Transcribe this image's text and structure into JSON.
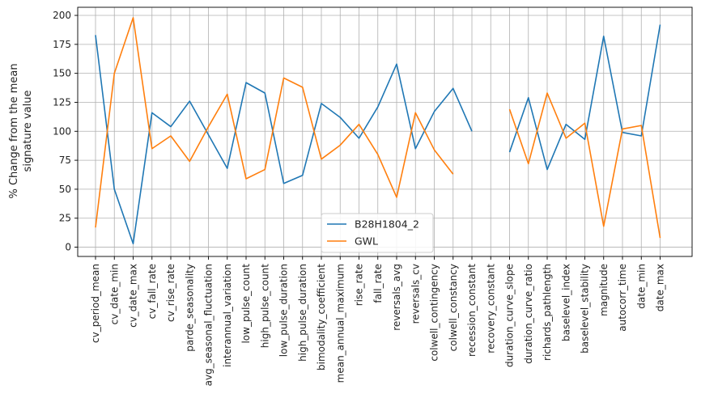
{
  "chart_data": {
    "type": "line",
    "title": "",
    "xlabel": "",
    "ylabel": [
      "% Change from the mean",
      "signature  value"
    ],
    "ylim": [
      -8,
      207
    ],
    "yticks": [
      0,
      25,
      50,
      75,
      100,
      125,
      150,
      175,
      200
    ],
    "grid": true,
    "legend_position": "lower-center",
    "categories": [
      "cv_period_mean",
      "cv_date_min",
      "cv_date_max",
      "cv_fall_rate",
      "cv_rise_rate",
      "parde_seasonality",
      "avg_seasonal_fluctuation",
      "interannual_variation",
      "low_pulse_count",
      "high_pulse_count",
      "low_pulse_duration",
      "high_pulse_duration",
      "bimodality_coefficient",
      "mean_annual_maximum",
      "rise_rate",
      "fall_rate",
      "reversals_avg",
      "reversals_cv",
      "colwell_contingency",
      "colwell_constancy",
      "recession_constant",
      "recovery_constant",
      "duration_curve_slope",
      "duration_curve_ratio",
      "richards_pathlength",
      "baselevel_index",
      "baselevel_stability",
      "magnitude",
      "autocorr_time",
      "date_min",
      "date_max"
    ],
    "series": [
      {
        "name": "B28H1804_2",
        "color": "#1f77b4",
        "values": [
          183,
          50,
          3,
          116,
          104,
          126,
          97,
          68,
          142,
          133,
          55,
          62,
          124,
          112,
          94,
          121,
          158,
          85,
          117,
          137,
          100,
          null,
          82,
          129,
          67,
          106,
          93,
          182,
          99,
          96,
          192
        ]
      },
      {
        "name": "GWL",
        "color": "#ff7f0e",
        "values": [
          17,
          150,
          198,
          85,
          96,
          74,
          104,
          132,
          59,
          67,
          146,
          138,
          76,
          88,
          106,
          80,
          43,
          116,
          84,
          63,
          null,
          null,
          119,
          72,
          133,
          94,
          107,
          18,
          102,
          105,
          8
        ]
      }
    ]
  }
}
